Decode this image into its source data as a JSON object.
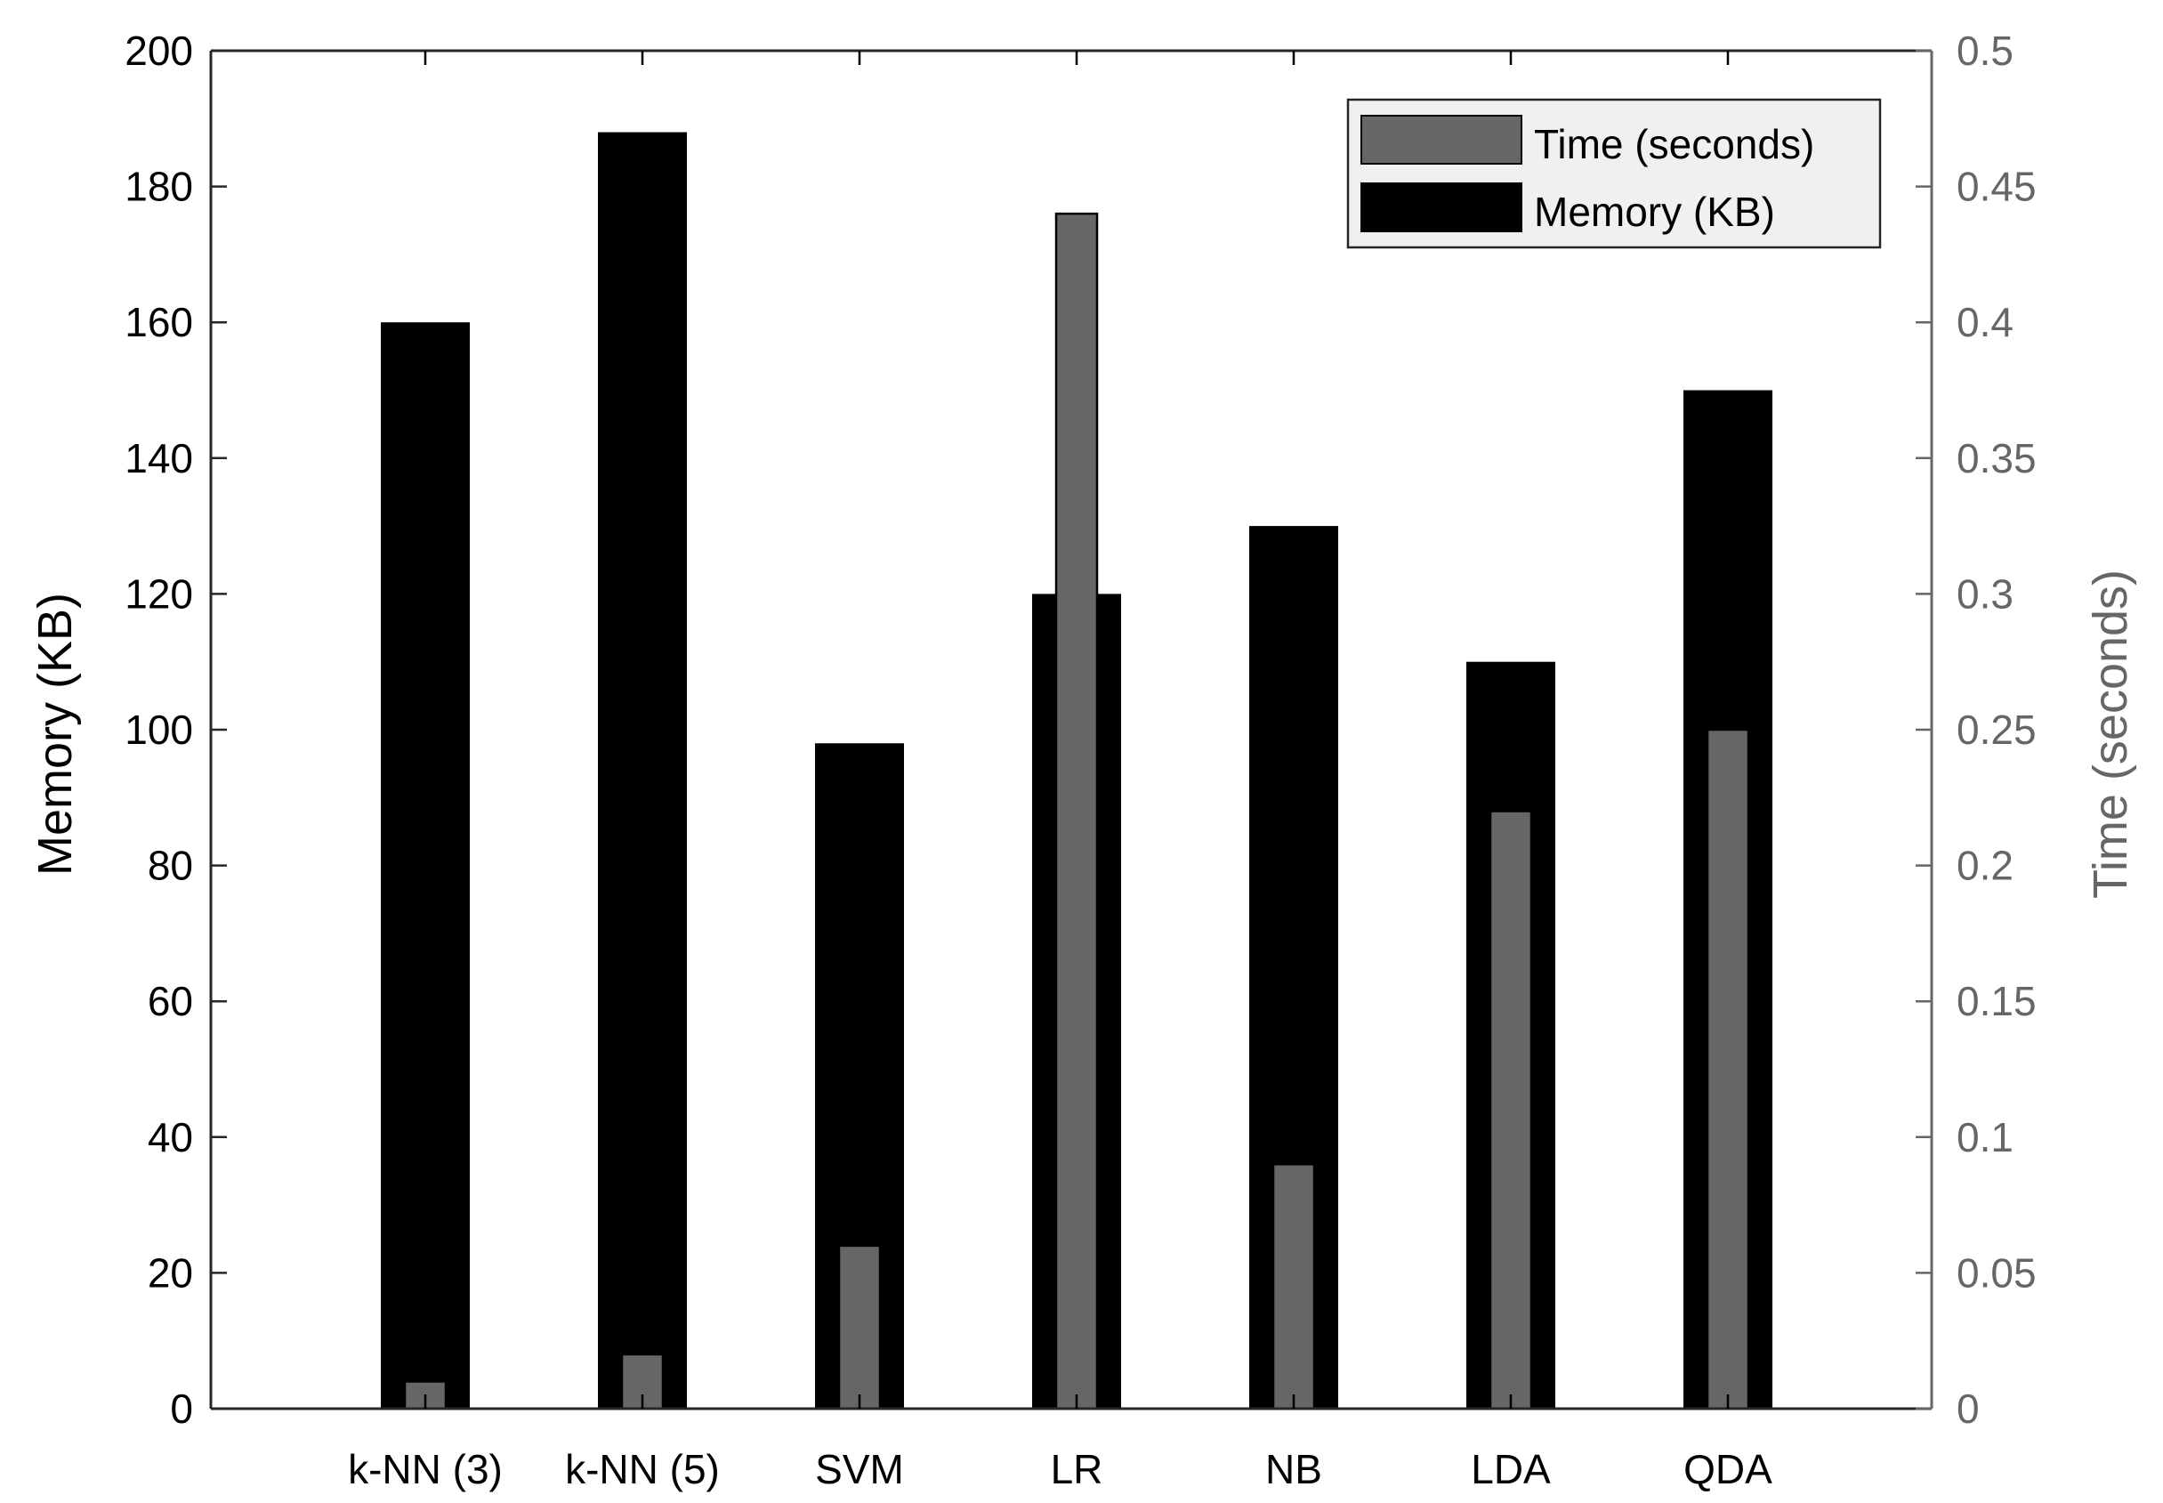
{
  "chart_data": {
    "type": "bar",
    "categories": [
      "k-NN (3)",
      "k-NN (5)",
      "SVM",
      "LR",
      "NB",
      "LDA",
      "QDA"
    ],
    "series": [
      {
        "name": "Memory (KB)",
        "axis": "left",
        "color": "#000000",
        "values": [
          160,
          188,
          98,
          120,
          130,
          110,
          150
        ]
      },
      {
        "name": "Time (seconds)",
        "axis": "right",
        "color": "#666666",
        "values": [
          0.01,
          0.02,
          0.06,
          0.44,
          0.09,
          0.22,
          0.25
        ]
      }
    ],
    "ylabel_left": "Memory (KB)",
    "ylabel_right": "Time (seconds)",
    "ylim_left": [
      0,
      200
    ],
    "ylim_right": [
      0,
      0.5
    ],
    "yticks_left": [
      "0",
      "20",
      "40",
      "60",
      "80",
      "100",
      "120",
      "140",
      "160",
      "180",
      "200"
    ],
    "yticks_right": [
      "0",
      "0.05",
      "0.1",
      "0.15",
      "0.2",
      "0.25",
      "0.3",
      "0.35",
      "0.4",
      "0.45",
      "0.5"
    ],
    "legend": {
      "position": "top-right",
      "entries": [
        {
          "label": "Time (seconds)",
          "color": "#666666"
        },
        {
          "label": "Memory (KB)",
          "color": "#000000"
        }
      ]
    },
    "right_axis_color": "#666666",
    "grid": false
  }
}
